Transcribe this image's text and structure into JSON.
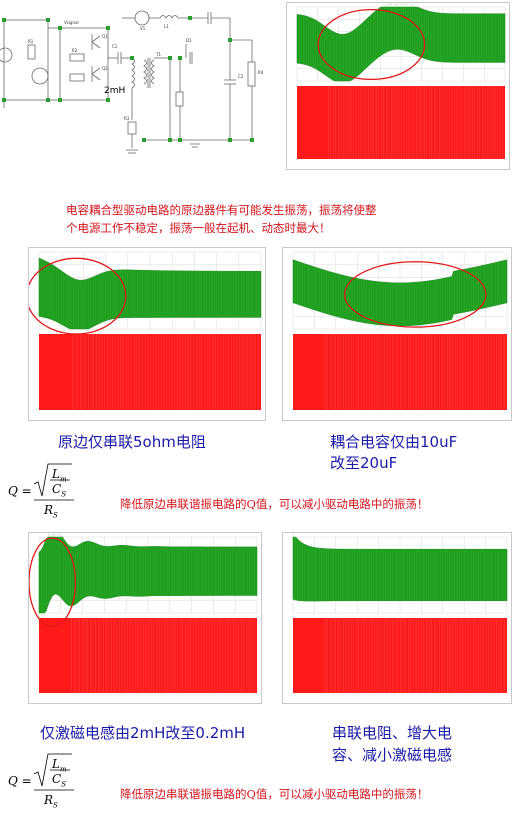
{
  "circuit": {
    "inductor_label": "2mH",
    "part_labels": [
      "V1",
      "L1",
      "C1",
      "C2",
      "R1",
      "R2",
      "R3",
      "T1",
      "Q1",
      "Q2",
      "D1",
      "R4",
      "Vsignal"
    ]
  },
  "intro_text_line1": "电容耦合型驱动电路的原边器件有可能发生振荡，振荡将使整",
  "intro_text_line2": "个电源工作不稳定，振荡一般在起机、动态时最大！",
  "captions": {
    "series_resistor": "原边仅串联5ohm电阻",
    "coupling_cap_line1": "耦合电容仅由10uF",
    "coupling_cap_line2": "改至20uF",
    "magnetizing_inductor": "仅激磁电感由2mH改至0.2mH",
    "combined_line1": "串联电阻、增大电",
    "combined_line2": "容、减小激磁电感"
  },
  "formula": {
    "lhs": "Q =",
    "numerator": "L",
    "numerator_sub": "m",
    "denominator": "C",
    "denominator_sub": "S",
    "divisor": "R",
    "divisor_sub": "S"
  },
  "q_note": "降低原边串联谐振电路的Q值，可以减小驱动电路中的振荡！",
  "colors": {
    "oscillation_green": "#1f9e1f",
    "pulse_red": "#ff1a1a",
    "highlight_ellipse": "#e01818",
    "text_red": "#d4141c",
    "text_blue": "#1a1aa8"
  }
}
